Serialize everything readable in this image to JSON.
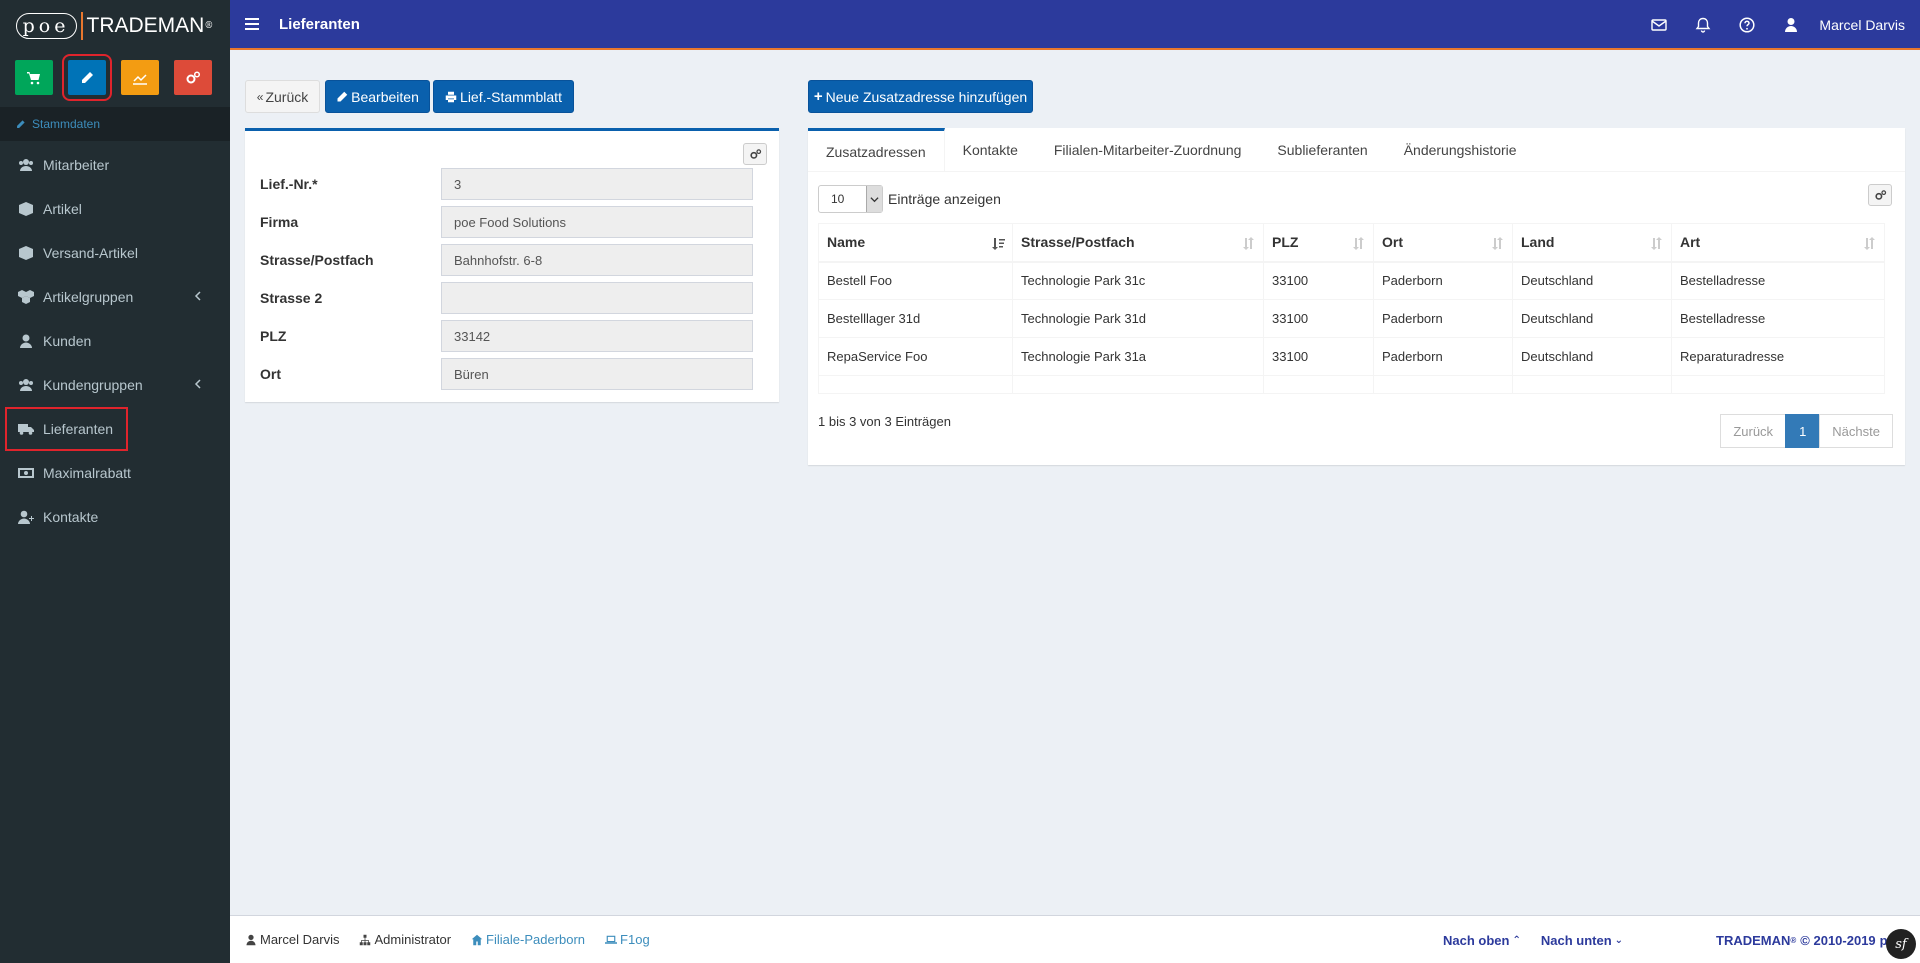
{
  "brand": {
    "poe": "poe",
    "name": "TRADEMAN",
    "reg": "®"
  },
  "sidebar": {
    "section": "Stammdaten",
    "items": [
      {
        "label": "Mitarbeiter",
        "icon": "users-icon"
      },
      {
        "label": "Artikel",
        "icon": "cube-icon"
      },
      {
        "label": "Versand-Artikel",
        "icon": "cube-icon"
      },
      {
        "label": "Artikelgruppen",
        "icon": "cubes-icon"
      },
      {
        "label": "Kunden",
        "icon": "user-icon"
      },
      {
        "label": "Kundengruppen",
        "icon": "users-icon"
      },
      {
        "label": "Lieferanten",
        "icon": "truck-icon"
      },
      {
        "label": "Maximalrabatt",
        "icon": "money-icon"
      },
      {
        "label": "Kontakte",
        "icon": "user-plus-icon"
      }
    ]
  },
  "topbar": {
    "title": "Lieferanten",
    "user": "Marcel Darvis"
  },
  "actions": {
    "back": "Zurück",
    "edit": "Bearbeiten",
    "sheet": "Lief.-Stammblatt",
    "add_address": "Neue Zusatzadresse hinzufügen"
  },
  "form": {
    "fields": [
      {
        "label": "Lief.-Nr.*",
        "value": "3"
      },
      {
        "label": "Firma",
        "value": "poe Food Solutions"
      },
      {
        "label": "Strasse/Postfach",
        "value": "Bahnhofstr. 6-8"
      },
      {
        "label": "Strasse 2",
        "value": ""
      },
      {
        "label": "PLZ",
        "value": "33142"
      },
      {
        "label": "Ort",
        "value": "Büren"
      }
    ]
  },
  "tabs": [
    "Zusatzadressen",
    "Kontakte",
    "Filialen-Mitarbeiter-Zuordnung",
    "Sublieferanten",
    "Änderungshistorie"
  ],
  "table": {
    "length_value": "10",
    "length_label": "Einträge anzeigen",
    "columns": [
      "Name",
      "Strasse/Postfach",
      "PLZ",
      "Ort",
      "Land",
      "Art"
    ],
    "rows": [
      [
        "Bestell Foo",
        "Technologie Park 31c",
        "33100",
        "Paderborn",
        "Deutschland",
        "Bestelladresse"
      ],
      [
        "Bestelllager 31d",
        "Technologie Park 31d",
        "33100",
        "Paderborn",
        "Deutschland",
        "Bestelladresse"
      ],
      [
        "RepaService Foo",
        "Technologie Park 31a",
        "33100",
        "Paderborn",
        "Deutschland",
        "Reparaturadresse"
      ]
    ],
    "info": "1 bis 3 von 3 Einträgen",
    "pager": {
      "prev": "Zurück",
      "current": "1",
      "next": "Nächste"
    }
  },
  "footer": {
    "user": "Marcel Darvis",
    "role": "Administrator",
    "branch": "Filiale-Paderborn",
    "log": "F1og",
    "up": "Nach oben",
    "down": "Nach unten",
    "brand": "TRADEMAN",
    "copyright": "© 2010-2019",
    "tail": "po",
    "sf": "sf"
  },
  "colors": {
    "topbar": "#2c3a9c",
    "accent": "#e8772e",
    "primary": "#0a60ad",
    "sidebar": "#222d32"
  }
}
